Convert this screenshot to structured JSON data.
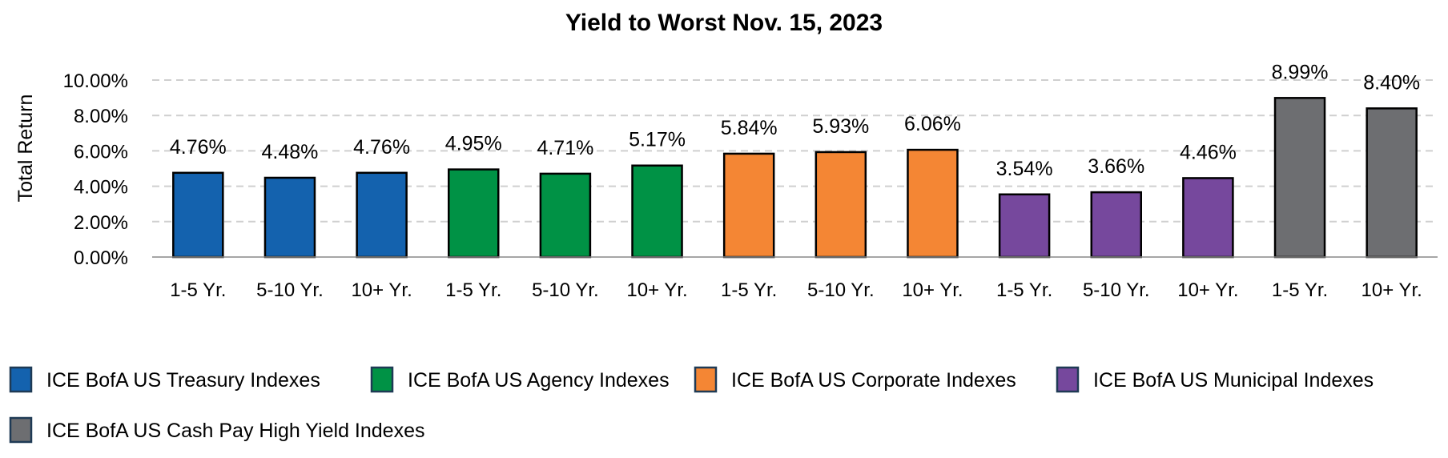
{
  "chart_data": {
    "type": "bar",
    "title": "Yield to Worst Nov. 15, 2023",
    "ylabel": "Total Return",
    "xlabel": "",
    "ylim": [
      0,
      10
    ],
    "yticks": [
      "0.00%",
      "2.00%",
      "4.00%",
      "6.00%",
      "8.00%",
      "10.00%"
    ],
    "grid": true,
    "legend_position": "bottom",
    "categories": [
      "1-5 Yr.",
      "5-10 Yr.",
      "10+ Yr.",
      "1-5 Yr.",
      "5-10 Yr.",
      "10+ Yr.",
      "1-5 Yr.",
      "5-10 Yr.",
      "10+ Yr.",
      "1-5 Yr.",
      "5-10 Yr.",
      "10+ Yr.",
      "1-5 Yr.",
      "10+ Yr."
    ],
    "values": [
      4.76,
      4.48,
      4.76,
      4.95,
      4.71,
      5.17,
      5.84,
      5.93,
      6.06,
      3.54,
      3.66,
      4.46,
      8.99,
      8.4
    ],
    "data_labels": [
      "4.76%",
      "4.48%",
      "4.76%",
      "4.95%",
      "4.71%",
      "5.17%",
      "5.84%",
      "5.93%",
      "6.06%",
      "3.54%",
      "3.66%",
      "4.46%",
      "8.99%",
      "8.40%"
    ],
    "bar_series": [
      0,
      0,
      0,
      1,
      1,
      1,
      2,
      2,
      2,
      3,
      3,
      3,
      4,
      4
    ],
    "series": [
      {
        "name": "ICE BofA US Treasury Indexes",
        "color": "#1462AE"
      },
      {
        "name": "ICE BofA US Agency Indexes",
        "color": "#009245"
      },
      {
        "name": "ICE BofA US Corporate Indexes",
        "color": "#F48634"
      },
      {
        "name": "ICE BofA US Municipal Indexes",
        "color": "#76489D"
      },
      {
        "name": "ICE BofA US Cash Pay High Yield Indexes",
        "color": "#6D6E71"
      }
    ]
  }
}
